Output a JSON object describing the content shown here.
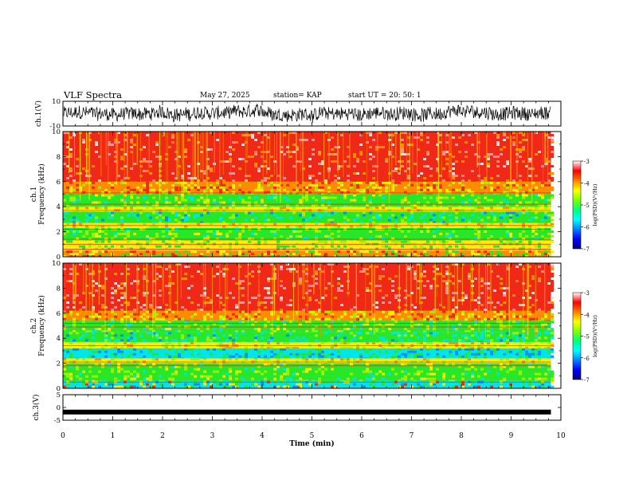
{
  "header": {
    "title": "VLF Spectra",
    "date": "May 27, 2025",
    "station": "station= KAP",
    "start": "start  UT  =   20: 50: 1"
  },
  "chart_data": [
    {
      "type": "line",
      "name": "ch1-waveform",
      "ylabel": "ch.1(V)",
      "ylim": [
        -10,
        10
      ],
      "yticks": [
        "10",
        "-10"
      ],
      "xlim": [
        0,
        10
      ],
      "series_color": "#000000",
      "description": "noisy broadband voltage trace, mostly between -8 and 8 V"
    },
    {
      "type": "heatmap",
      "name": "ch1-spectrogram",
      "ylabel": "ch.1 Frequency (kHz)",
      "ylim": [
        0,
        10
      ],
      "yticks": [
        "0",
        "2",
        "4",
        "6",
        "8",
        "10"
      ],
      "xlim": [
        0,
        10
      ],
      "data_end_min": 9.8,
      "bands_khz": [
        {
          "from": 0,
          "to": 0.5,
          "level": "mixed"
        },
        {
          "from": 0.5,
          "to": 1.3,
          "level": "yellow-green"
        },
        {
          "from": 1.3,
          "to": 2.3,
          "level": "green"
        },
        {
          "from": 2.3,
          "to": 2.7,
          "level": "yellow"
        },
        {
          "from": 2.7,
          "to": 3.6,
          "level": "green-cyan"
        },
        {
          "from": 3.6,
          "to": 4.0,
          "level": "yellow"
        },
        {
          "from": 4.0,
          "to": 5.0,
          "level": "green"
        },
        {
          "from": 5.0,
          "to": 6.0,
          "level": "yellow-orange"
        },
        {
          "from": 6.0,
          "to": 10,
          "level": "red"
        }
      ],
      "lines_khz": [
        0.6,
        1.0,
        1.4,
        2.2,
        2.5,
        3.7,
        4.2,
        5.1
      ]
    },
    {
      "type": "heatmap",
      "name": "ch2-spectrogram",
      "ylabel": "ch.2 Frequency (kHz)",
      "ylim": [
        0,
        10
      ],
      "yticks": [
        "0",
        "2",
        "4",
        "6",
        "8",
        "10"
      ],
      "xlim": [
        0,
        10
      ],
      "data_end_min": 9.8,
      "bands_khz": [
        {
          "from": 0,
          "to": 0.6,
          "level": "cyan-mixed"
        },
        {
          "from": 0.6,
          "to": 2.0,
          "level": "green"
        },
        {
          "from": 2.0,
          "to": 2.4,
          "level": "yellow"
        },
        {
          "from": 2.4,
          "to": 3.2,
          "level": "cyan-blue"
        },
        {
          "from": 3.2,
          "to": 3.7,
          "level": "yellow"
        },
        {
          "from": 3.7,
          "to": 4.5,
          "level": "green-cyan"
        },
        {
          "from": 4.5,
          "to": 5.4,
          "level": "green"
        },
        {
          "from": 5.4,
          "to": 6.2,
          "level": "yellow-orange"
        },
        {
          "from": 6.2,
          "to": 10,
          "level": "red"
        }
      ],
      "lines_khz": [
        0.5,
        1.8,
        2.1,
        3.4,
        4.9,
        5.2
      ]
    },
    {
      "type": "line",
      "name": "ch3-waveform",
      "ylabel": "ch.3(V)",
      "ylim": [
        -5,
        5
      ],
      "yticks": [
        "5",
        "0",
        "-5"
      ],
      "xlim": [
        0,
        10
      ],
      "xticks": [
        "0",
        "1",
        "2",
        "3",
        "4",
        "5",
        "6",
        "7",
        "8",
        "9",
        "10"
      ],
      "xlabel": "Time  (min)",
      "constant_value_v": -1.8,
      "series_color": "#000000"
    },
    {
      "type": "colorbar",
      "name": "psd-colorbar",
      "label": "log(PSD)(V²/Hz)",
      "range": [
        -7,
        -3
      ],
      "ticks": [
        "-3",
        "-4",
        "-5",
        "-6",
        "-7"
      ],
      "colormap": [
        "#000080",
        "#0000ff",
        "#0080ff",
        "#00ffff",
        "#00ff80",
        "#80ff00",
        "#ffff00",
        "#ff8000",
        "#ff0000",
        "#ffffff"
      ]
    }
  ]
}
